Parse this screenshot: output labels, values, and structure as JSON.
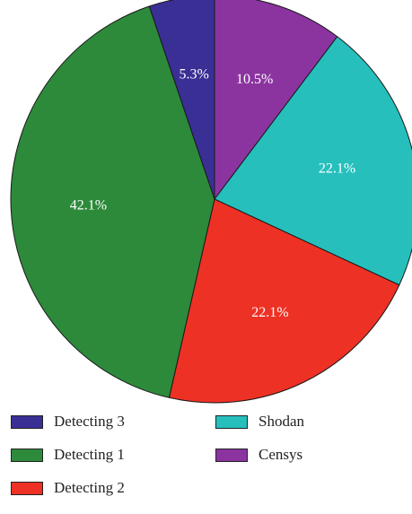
{
  "chart_data": {
    "type": "pie",
    "title": "",
    "slices": [
      {
        "name": "Censys",
        "value": 10.5,
        "label": "10.5%",
        "color": "#8b34a0"
      },
      {
        "name": "Shodan",
        "value": 22.1,
        "label": "22.1%",
        "color": "#26bfbc"
      },
      {
        "name": "Detecting 2",
        "value": 22.1,
        "label": "22.1%",
        "color": "#ee3125"
      },
      {
        "name": "Detecting 1",
        "value": 42.1,
        "label": "42.1%",
        "color": "#2d8a3b"
      },
      {
        "name": "Detecting 3",
        "value": 5.3,
        "label": "5.3%",
        "color": "#3a2f95"
      }
    ],
    "start": "top",
    "direction": "clockwise",
    "legend": {
      "placement": "bottom",
      "columns": 2,
      "order": [
        "Detecting 3",
        "Detecting 1",
        "Detecting 2",
        "Shodan",
        "Censys"
      ]
    }
  }
}
